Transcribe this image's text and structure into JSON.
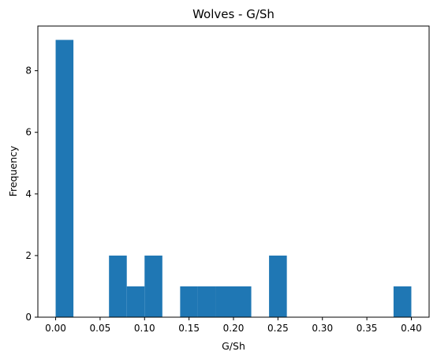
{
  "chart_data": {
    "type": "bar",
    "title": "Wolves - G/Sh",
    "xlabel": "G/Sh",
    "ylabel": "Frequency",
    "xlim": [
      -0.02,
      0.42
    ],
    "ylim": [
      0,
      9.45
    ],
    "x_ticks": [
      "0.00",
      "0.05",
      "0.10",
      "0.15",
      "0.20",
      "0.25",
      "0.30",
      "0.35",
      "0.40"
    ],
    "y_ticks": [
      "0",
      "2",
      "4",
      "6",
      "8"
    ],
    "bins": [
      {
        "x0": 0.0,
        "x1": 0.02,
        "count": 9
      },
      {
        "x0": 0.02,
        "x1": 0.04,
        "count": 0
      },
      {
        "x0": 0.04,
        "x1": 0.06,
        "count": 0
      },
      {
        "x0": 0.06,
        "x1": 0.08,
        "count": 2
      },
      {
        "x0": 0.08,
        "x1": 0.1,
        "count": 1
      },
      {
        "x0": 0.1,
        "x1": 0.12,
        "count": 2
      },
      {
        "x0": 0.12,
        "x1": 0.14,
        "count": 0
      },
      {
        "x0": 0.14,
        "x1": 0.16,
        "count": 1
      },
      {
        "x0": 0.16,
        "x1": 0.18,
        "count": 1
      },
      {
        "x0": 0.18,
        "x1": 0.2,
        "count": 1
      },
      {
        "x0": 0.2,
        "x1": 0.22,
        "count": 1
      },
      {
        "x0": 0.22,
        "x1": 0.24,
        "count": 0
      },
      {
        "x0": 0.24,
        "x1": 0.26,
        "count": 2
      },
      {
        "x0": 0.26,
        "x1": 0.28,
        "count": 0
      },
      {
        "x0": 0.28,
        "x1": 0.3,
        "count": 0
      },
      {
        "x0": 0.3,
        "x1": 0.32,
        "count": 0
      },
      {
        "x0": 0.32,
        "x1": 0.34,
        "count": 0
      },
      {
        "x0": 0.34,
        "x1": 0.36,
        "count": 0
      },
      {
        "x0": 0.36,
        "x1": 0.38,
        "count": 0
      },
      {
        "x0": 0.38,
        "x1": 0.4,
        "count": 1
      }
    ],
    "bar_color": "#1f77b4",
    "grid": false,
    "legend": "none"
  }
}
